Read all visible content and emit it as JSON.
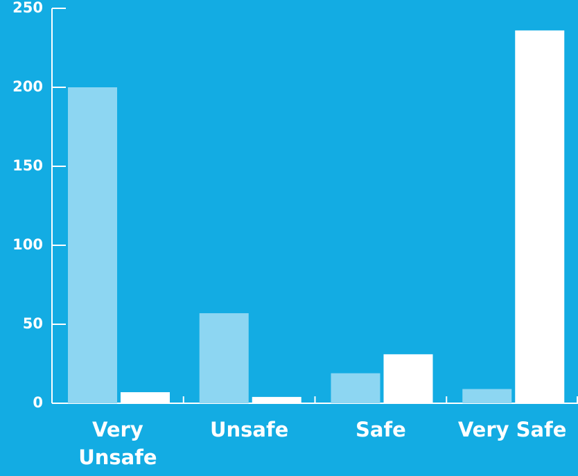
{
  "chart_data": {
    "type": "bar",
    "categories": [
      "Very Unsafe",
      "Unsafe",
      "Safe",
      "Very Safe"
    ],
    "series": [
      {
        "color": "#8dd6f2",
        "values": [
          200,
          57,
          19,
          9
        ]
      },
      {
        "color": "#ffffff",
        "values": [
          7,
          4,
          31,
          236
        ]
      }
    ],
    "ylim": [
      0,
      250
    ],
    "yticks": [
      0,
      50,
      100,
      150,
      200,
      250
    ],
    "grid": false,
    "background": "#13ace3"
  }
}
